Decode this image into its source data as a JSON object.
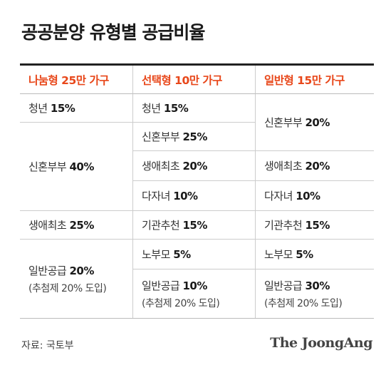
{
  "title": "공공분양 유형별 공급비율",
  "headers": [
    "나눔형 25만 가구",
    "선택형 10만 가구",
    "일반형 15만 가구"
  ],
  "col1": [
    {
      "label": "청년",
      "value": "15%"
    },
    {
      "label": "신혼부부",
      "value": "40%"
    },
    {
      "label": "생애최초",
      "value": "25%"
    },
    {
      "label": "일반공급",
      "value": "20%",
      "note": "(추첨제 20% 도입)"
    }
  ],
  "col2": [
    {
      "label": "청년",
      "value": "15%"
    },
    {
      "label": "신혼부부",
      "value": "25%"
    },
    {
      "label": "생애최초",
      "value": "20%"
    },
    {
      "label": "다자녀",
      "value": "10%"
    },
    {
      "label": "기관추천",
      "value": "15%"
    },
    {
      "label": "노부모",
      "value": "5%"
    },
    {
      "label": "일반공급",
      "value": "10%",
      "note": "(추첨제 20% 도입)"
    }
  ],
  "col3": [
    {
      "label": "신혼부부",
      "value": "20%"
    },
    {
      "label": "생애최초",
      "value": "20%"
    },
    {
      "label": "다자녀",
      "value": "10%"
    },
    {
      "label": "기관추천",
      "value": "15%"
    },
    {
      "label": "노부모",
      "value": "5%"
    },
    {
      "label": "일반공급",
      "value": "30%",
      "note": "(추첨제 20% 도입)"
    }
  ],
  "source": "자료: 국토부",
  "brand": "The JoongAng",
  "colors": {
    "accent": "#e8471a",
    "text": "#1a1a1a",
    "rule": "#cccccc"
  }
}
